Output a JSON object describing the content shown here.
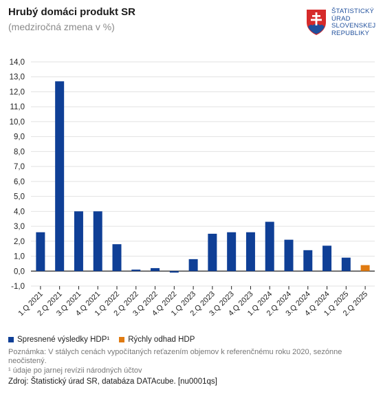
{
  "header": {
    "title": "Hrubý domáci produkt SR",
    "subtitle": "(medziročná zmena v %)"
  },
  "logo": {
    "lines": [
      "ŠTATISTICKÝ",
      "ÚRAD",
      "SLOVENSKEJ",
      "REPUBLIKY"
    ]
  },
  "chart_data": {
    "type": "bar",
    "title": "Hrubý domáci produkt SR",
    "subtitle": "(medziročná zmena v %)",
    "xlabel": "",
    "ylabel": "",
    "ylim": [
      -1.0,
      14.0
    ],
    "yticks": [
      "-1,0",
      "0,0",
      "1,0",
      "2,0",
      "3,0",
      "4,0",
      "5,0",
      "6,0",
      "7,0",
      "8,0",
      "9,0",
      "10,0",
      "11,0",
      "12,0",
      "13,0",
      "14,0"
    ],
    "grid": true,
    "categories": [
      "1.Q 2021",
      "2.Q 2021",
      "3.Q 2021",
      "4.Q 2021",
      "1.Q 2022",
      "2.Q 2022",
      "3.Q 2022",
      "4.Q 2022",
      "1.Q 2023",
      "2.Q 2023",
      "3.Q 2023",
      "4.Q 2023",
      "1.Q 2024",
      "2.Q 2024",
      "3.Q 2024",
      "4.Q 2024",
      "1.Q 2025",
      "2.Q 2025"
    ],
    "series": [
      {
        "name": "Spresnené výsledky HDP¹",
        "color": "#0f3f96",
        "values": [
          2.6,
          12.7,
          4.0,
          4.0,
          1.8,
          0.1,
          0.2,
          -0.1,
          0.8,
          2.5,
          2.6,
          2.6,
          3.3,
          2.1,
          1.4,
          1.7,
          0.9,
          null
        ]
      },
      {
        "name": "Rýchly odhad HDP",
        "color": "#e07b12",
        "values": [
          null,
          null,
          null,
          null,
          null,
          null,
          null,
          null,
          null,
          null,
          null,
          null,
          null,
          null,
          null,
          null,
          null,
          0.4
        ]
      }
    ],
    "legend_position": "bottom-left"
  },
  "legend": [
    {
      "label": "Spresnené výsledky HDP¹",
      "color": "#0f3f96"
    },
    {
      "label": "Rýchly odhad HDP",
      "color": "#e07b12"
    }
  ],
  "notes": {
    "note1": "Poznámka: V stálych cenách vypočítaných reťazením objemov k referenčnému roku 2020, sezónne neočistený.",
    "note2": "¹ údaje po jarnej revízii národných účtov",
    "source": "Zdroj: Štatistický úrad SR, databáza DATAcube. [nu0001qs]"
  }
}
